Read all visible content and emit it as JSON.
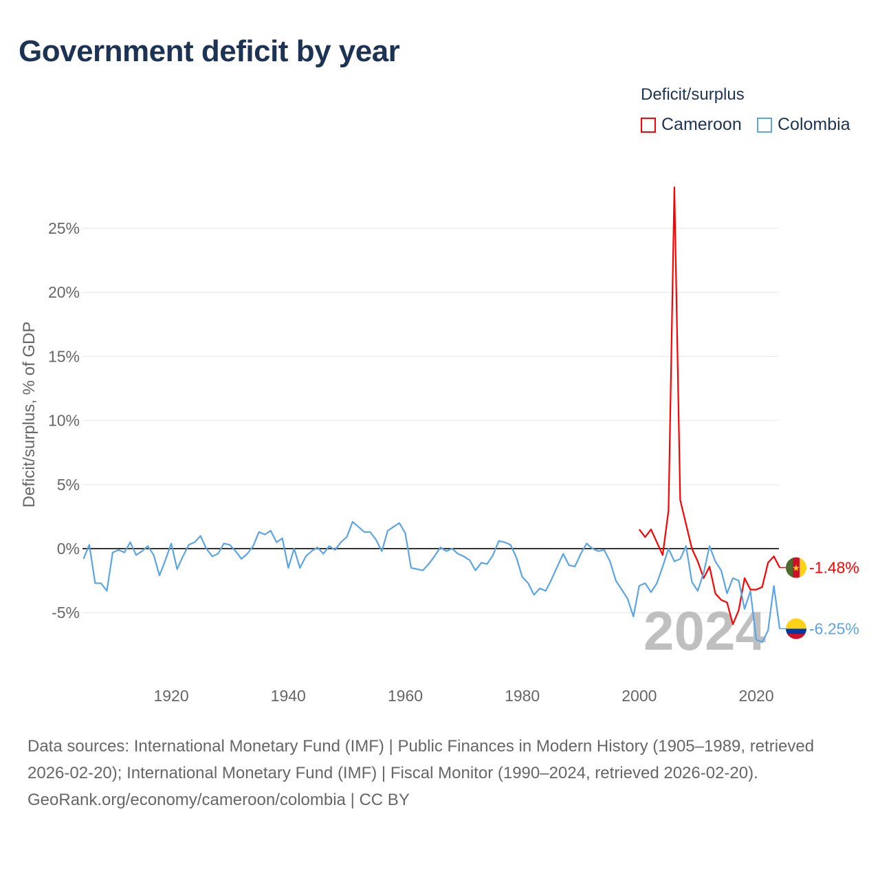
{
  "title": "Government deficit by year",
  "legend": {
    "title": "Deficit/surplus",
    "items": [
      "Cameroon",
      "Colombia"
    ]
  },
  "footer": {
    "sources": "Data sources: International Monetary Fund (IMF) | Public Finances in Modern History (1905–1989, retrieved 2026-02-20); International Monetary Fund (IMF) | Fiscal Monitor (1990–2024, retrieved 2026-02-20).",
    "credit": "GeoRank.org/economy/cameroon/colombia | CC BY"
  },
  "chart_data": {
    "type": "line",
    "title": "Government deficit by year",
    "ylabel": "Deficit/surplus, % of GDP",
    "xlabel": "",
    "xlim": [
      1905,
      2024
    ],
    "ylim": [
      -10,
      28.5
    ],
    "xticks": [
      1920,
      1940,
      1960,
      1980,
      2000,
      2020
    ],
    "xtick_labels": [
      "1920",
      "1940",
      "1960",
      "1980",
      "2000",
      "2020"
    ],
    "yticks": [
      -5,
      0,
      5,
      10,
      15,
      20,
      25
    ],
    "ytick_labels": [
      "-5%",
      "0%",
      "5%",
      "10%",
      "15%",
      "20%",
      "25%"
    ],
    "grid": true,
    "legend_position": "top-right",
    "year_watermark": "2024",
    "series": [
      {
        "name": "Cameroon",
        "color": "#ff0000",
        "end_label": "-1.48%",
        "start_year": 2000,
        "values": [
          1.5,
          0.9,
          1.5,
          0.5,
          -0.5,
          3.0,
          28.2,
          3.8,
          1.9,
          0.0,
          -1.0,
          -2.3,
          -1.4,
          -3.5,
          -4.0,
          -4.2,
          -5.9,
          -4.8,
          -2.3,
          -3.2,
          -3.2,
          -3.0,
          -1.1,
          -0.6,
          -1.48
        ]
      },
      {
        "name": "Colombia",
        "color": "#5ba4e6",
        "end_label": "-6.25%",
        "start_year": 1905,
        "values": [
          -0.8,
          0.3,
          -2.7,
          -2.7,
          -3.3,
          -0.3,
          -0.1,
          -0.3,
          0.5,
          -0.5,
          -0.2,
          0.2,
          -0.5,
          -2.1,
          -0.9,
          0.4,
          -1.6,
          -0.6,
          0.3,
          0.5,
          1.0,
          0.0,
          -0.6,
          -0.4,
          0.4,
          0.3,
          -0.2,
          -0.8,
          -0.4,
          0.2,
          1.3,
          1.1,
          1.4,
          0.5,
          0.8,
          -1.5,
          0.0,
          -1.5,
          -0.6,
          -0.2,
          0.1,
          -0.4,
          0.2,
          -0.1,
          0.5,
          0.9,
          2.1,
          1.7,
          1.3,
          1.3,
          0.7,
          -0.2,
          1.4,
          1.7,
          2.0,
          1.2,
          -1.5,
          -1.6,
          -1.7,
          -1.2,
          -0.6,
          0.1,
          -0.2,
          0.0,
          -0.4,
          -0.6,
          -0.9,
          -1.7,
          -1.1,
          -1.2,
          -0.5,
          0.6,
          0.5,
          0.3,
          -0.7,
          -2.2,
          -2.7,
          -3.6,
          -3.1,
          -3.3,
          -2.4,
          -1.4,
          -0.4,
          -1.3,
          -1.4,
          -0.4,
          0.4,
          0.0,
          -0.2,
          -0.1,
          -1.0,
          -2.5,
          -3.2,
          -3.9,
          -5.3,
          -2.9,
          -2.7,
          -3.4,
          -2.7,
          -1.4,
          0.0,
          -1.0,
          -0.8,
          0.2,
          -2.6,
          -3.3,
          -1.9,
          0.2,
          -1.0,
          -1.7,
          -3.5,
          -2.3,
          -2.5,
          -4.7,
          -3.3,
          -7.1,
          -7.3,
          -6.4,
          -2.9,
          -6.25
        ]
      }
    ]
  }
}
